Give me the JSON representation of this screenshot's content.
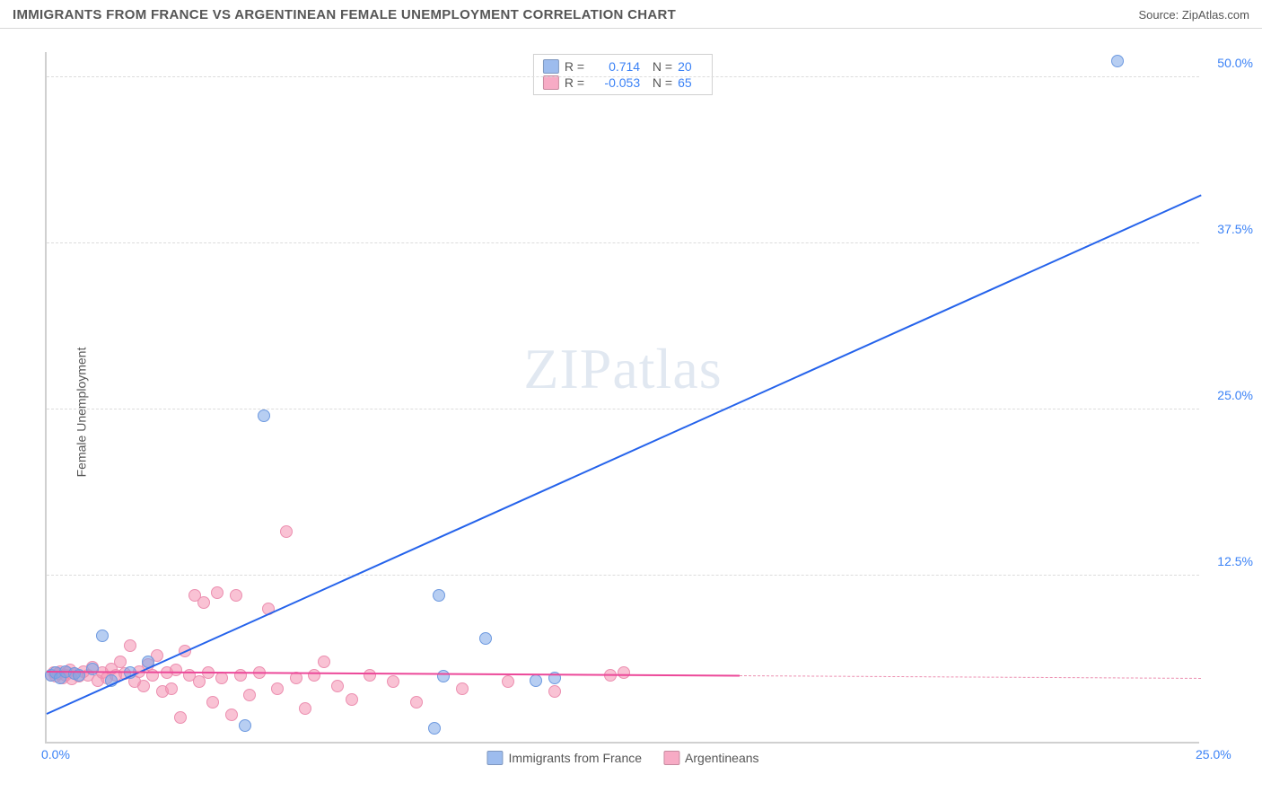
{
  "header": {
    "title": "IMMIGRANTS FROM FRANCE VS ARGENTINEAN FEMALE UNEMPLOYMENT CORRELATION CHART",
    "source_prefix": "Source: ",
    "source_name": "ZipAtlas.com"
  },
  "chart": {
    "type": "scatter",
    "ylabel": "Female Unemployment",
    "background_color": "#ffffff",
    "grid_color": "#dcdcdc",
    "axis_color": "#d0d0d0",
    "tick_color": "#3b82f6",
    "xlim": [
      0,
      25
    ],
    "ylim": [
      0,
      52
    ],
    "xticks": [
      {
        "v": 0,
        "label": "0.0%"
      },
      {
        "v": 25,
        "label": "25.0%"
      }
    ],
    "yticks": [
      {
        "v": 12.5,
        "label": "12.5%"
      },
      {
        "v": 25.0,
        "label": "25.0%"
      },
      {
        "v": 37.5,
        "label": "37.5%"
      },
      {
        "v": 50.0,
        "label": "50.0%"
      }
    ],
    "watermark": "ZIPatlas",
    "series": [
      {
        "name": "Immigrants from France",
        "color_fill": "rgba(124,166,232,0.55)",
        "color_stroke": "#6e9ae0",
        "stroke_width": 1,
        "marker_radius": 7,
        "R": "0.714",
        "N": "20",
        "trend": {
          "x1": 0,
          "y1": 2.0,
          "x2": 25,
          "y2": 41.0,
          "color": "#2563eb",
          "width": 2,
          "dash": false
        },
        "points": [
          [
            0.1,
            5.0
          ],
          [
            0.2,
            5.2
          ],
          [
            0.3,
            4.8
          ],
          [
            0.4,
            5.3
          ],
          [
            0.6,
            5.1
          ],
          [
            0.7,
            5.0
          ],
          [
            1.0,
            5.5
          ],
          [
            1.2,
            8.0
          ],
          [
            1.4,
            4.6
          ],
          [
            1.8,
            5.2
          ],
          [
            2.2,
            6.0
          ],
          [
            4.3,
            1.2
          ],
          [
            4.7,
            24.5
          ],
          [
            8.4,
            1.0
          ],
          [
            8.5,
            11.0
          ],
          [
            9.5,
            7.8
          ],
          [
            11.0,
            4.8
          ],
          [
            10.6,
            4.6
          ],
          [
            8.6,
            4.9
          ],
          [
            23.2,
            51.2
          ]
        ]
      },
      {
        "name": "Argentineans",
        "color_fill": "rgba(244,143,177,0.55)",
        "color_stroke": "#ec8fb0",
        "stroke_width": 1,
        "marker_radius": 7,
        "R": "-0.053",
        "N": "65",
        "trend": {
          "x1": 0,
          "y1": 5.2,
          "x2": 15,
          "y2": 4.9,
          "color": "#ec4899",
          "width": 2,
          "dash": false
        },
        "trend_extend": {
          "x1": 15,
          "y1": 4.9,
          "x2": 25,
          "y2": 4.7,
          "color": "#ec8fb0",
          "width": 1.5,
          "dash": true
        },
        "points": [
          [
            0.1,
            5.0
          ],
          [
            0.15,
            5.2
          ],
          [
            0.2,
            4.9
          ],
          [
            0.25,
            5.1
          ],
          [
            0.3,
            5.3
          ],
          [
            0.35,
            4.8
          ],
          [
            0.4,
            5.0
          ],
          [
            0.45,
            5.2
          ],
          [
            0.5,
            5.4
          ],
          [
            0.55,
            4.7
          ],
          [
            0.6,
            5.1
          ],
          [
            0.7,
            4.9
          ],
          [
            0.8,
            5.3
          ],
          [
            0.9,
            5.0
          ],
          [
            1.0,
            5.6
          ],
          [
            1.1,
            4.6
          ],
          [
            1.2,
            5.2
          ],
          [
            1.3,
            4.8
          ],
          [
            1.4,
            5.5
          ],
          [
            1.5,
            5.0
          ],
          [
            1.6,
            6.0
          ],
          [
            1.7,
            5.1
          ],
          [
            1.8,
            7.2
          ],
          [
            1.9,
            4.5
          ],
          [
            2.0,
            5.3
          ],
          [
            2.1,
            4.2
          ],
          [
            2.2,
            5.8
          ],
          [
            2.3,
            5.0
          ],
          [
            2.4,
            6.5
          ],
          [
            2.5,
            3.8
          ],
          [
            2.6,
            5.2
          ],
          [
            2.7,
            4.0
          ],
          [
            2.8,
            5.4
          ],
          [
            2.9,
            1.8
          ],
          [
            3.0,
            6.8
          ],
          [
            3.1,
            5.0
          ],
          [
            3.2,
            11.0
          ],
          [
            3.3,
            4.5
          ],
          [
            3.4,
            10.5
          ],
          [
            3.5,
            5.2
          ],
          [
            3.6,
            3.0
          ],
          [
            3.7,
            11.2
          ],
          [
            3.8,
            4.8
          ],
          [
            4.0,
            2.0
          ],
          [
            4.1,
            11.0
          ],
          [
            4.2,
            5.0
          ],
          [
            4.4,
            3.5
          ],
          [
            4.6,
            5.2
          ],
          [
            4.8,
            10.0
          ],
          [
            5.0,
            4.0
          ],
          [
            5.2,
            15.8
          ],
          [
            5.4,
            4.8
          ],
          [
            5.6,
            2.5
          ],
          [
            5.8,
            5.0
          ],
          [
            6.0,
            6.0
          ],
          [
            6.3,
            4.2
          ],
          [
            6.6,
            3.2
          ],
          [
            7.0,
            5.0
          ],
          [
            7.5,
            4.5
          ],
          [
            8.0,
            3.0
          ],
          [
            9.0,
            4.0
          ],
          [
            10.0,
            4.5
          ],
          [
            11.0,
            3.8
          ],
          [
            12.2,
            5.0
          ],
          [
            12.5,
            5.2
          ]
        ]
      }
    ],
    "legend_bottom": [
      {
        "swatch": "rgba(124,166,232,0.75)",
        "label": "Immigrants from France"
      },
      {
        "swatch": "rgba(244,143,177,0.75)",
        "label": "Argentineans"
      }
    ]
  }
}
